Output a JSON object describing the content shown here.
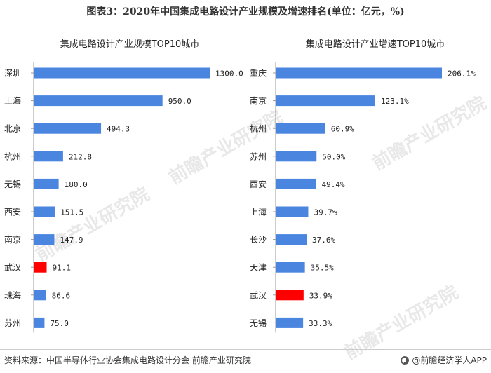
{
  "title": "图表3：2020年中国集成电路设计产业规模及增速排名(单位：亿元，%)",
  "source": "资料来源：中国半导体行业协会集成电路设计分会 前瞻产业研究院",
  "brand": "@前瞻经济学人APP",
  "watermark": "前瞻产业研究院",
  "colors": {
    "bar": "#4a86e0",
    "highlight": "#ff0000"
  },
  "chart_data": [
    {
      "type": "bar",
      "orientation": "horizontal",
      "title": "集成电路设计产业规模TOP10城市",
      "categories": [
        "深圳",
        "上海",
        "北京",
        "杭州",
        "无锡",
        "西安",
        "南京",
        "武汉",
        "珠海",
        "苏州"
      ],
      "values": [
        1300.0,
        950.0,
        494.3,
        212.8,
        180.0,
        151.5,
        147.9,
        91.1,
        86.6,
        75.0
      ],
      "value_labels": [
        "1300.0",
        "950.0",
        "494.3",
        "212.8",
        "180.0",
        "151.5",
        "147.9",
        "91.1",
        "86.6",
        "75.0"
      ],
      "highlight": "武汉",
      "xlim": [
        0,
        1300
      ]
    },
    {
      "type": "bar",
      "orientation": "horizontal",
      "title": "集成电路设计产业增速TOP10城市",
      "categories": [
        "重庆",
        "南京",
        "杭州",
        "苏州",
        "西安",
        "上海",
        "长沙",
        "天津",
        "武汉",
        "无锡"
      ],
      "values": [
        206.1,
        123.1,
        60.9,
        50.0,
        49.4,
        39.7,
        37.6,
        35.5,
        33.9,
        33.3
      ],
      "value_labels": [
        "206.1%",
        "123.1%",
        "60.9%",
        "50.0%",
        "49.4%",
        "39.7%",
        "37.6%",
        "35.5%",
        "33.9%",
        "33.3%"
      ],
      "highlight": "武汉",
      "xlim": [
        0,
        206.1
      ]
    }
  ]
}
